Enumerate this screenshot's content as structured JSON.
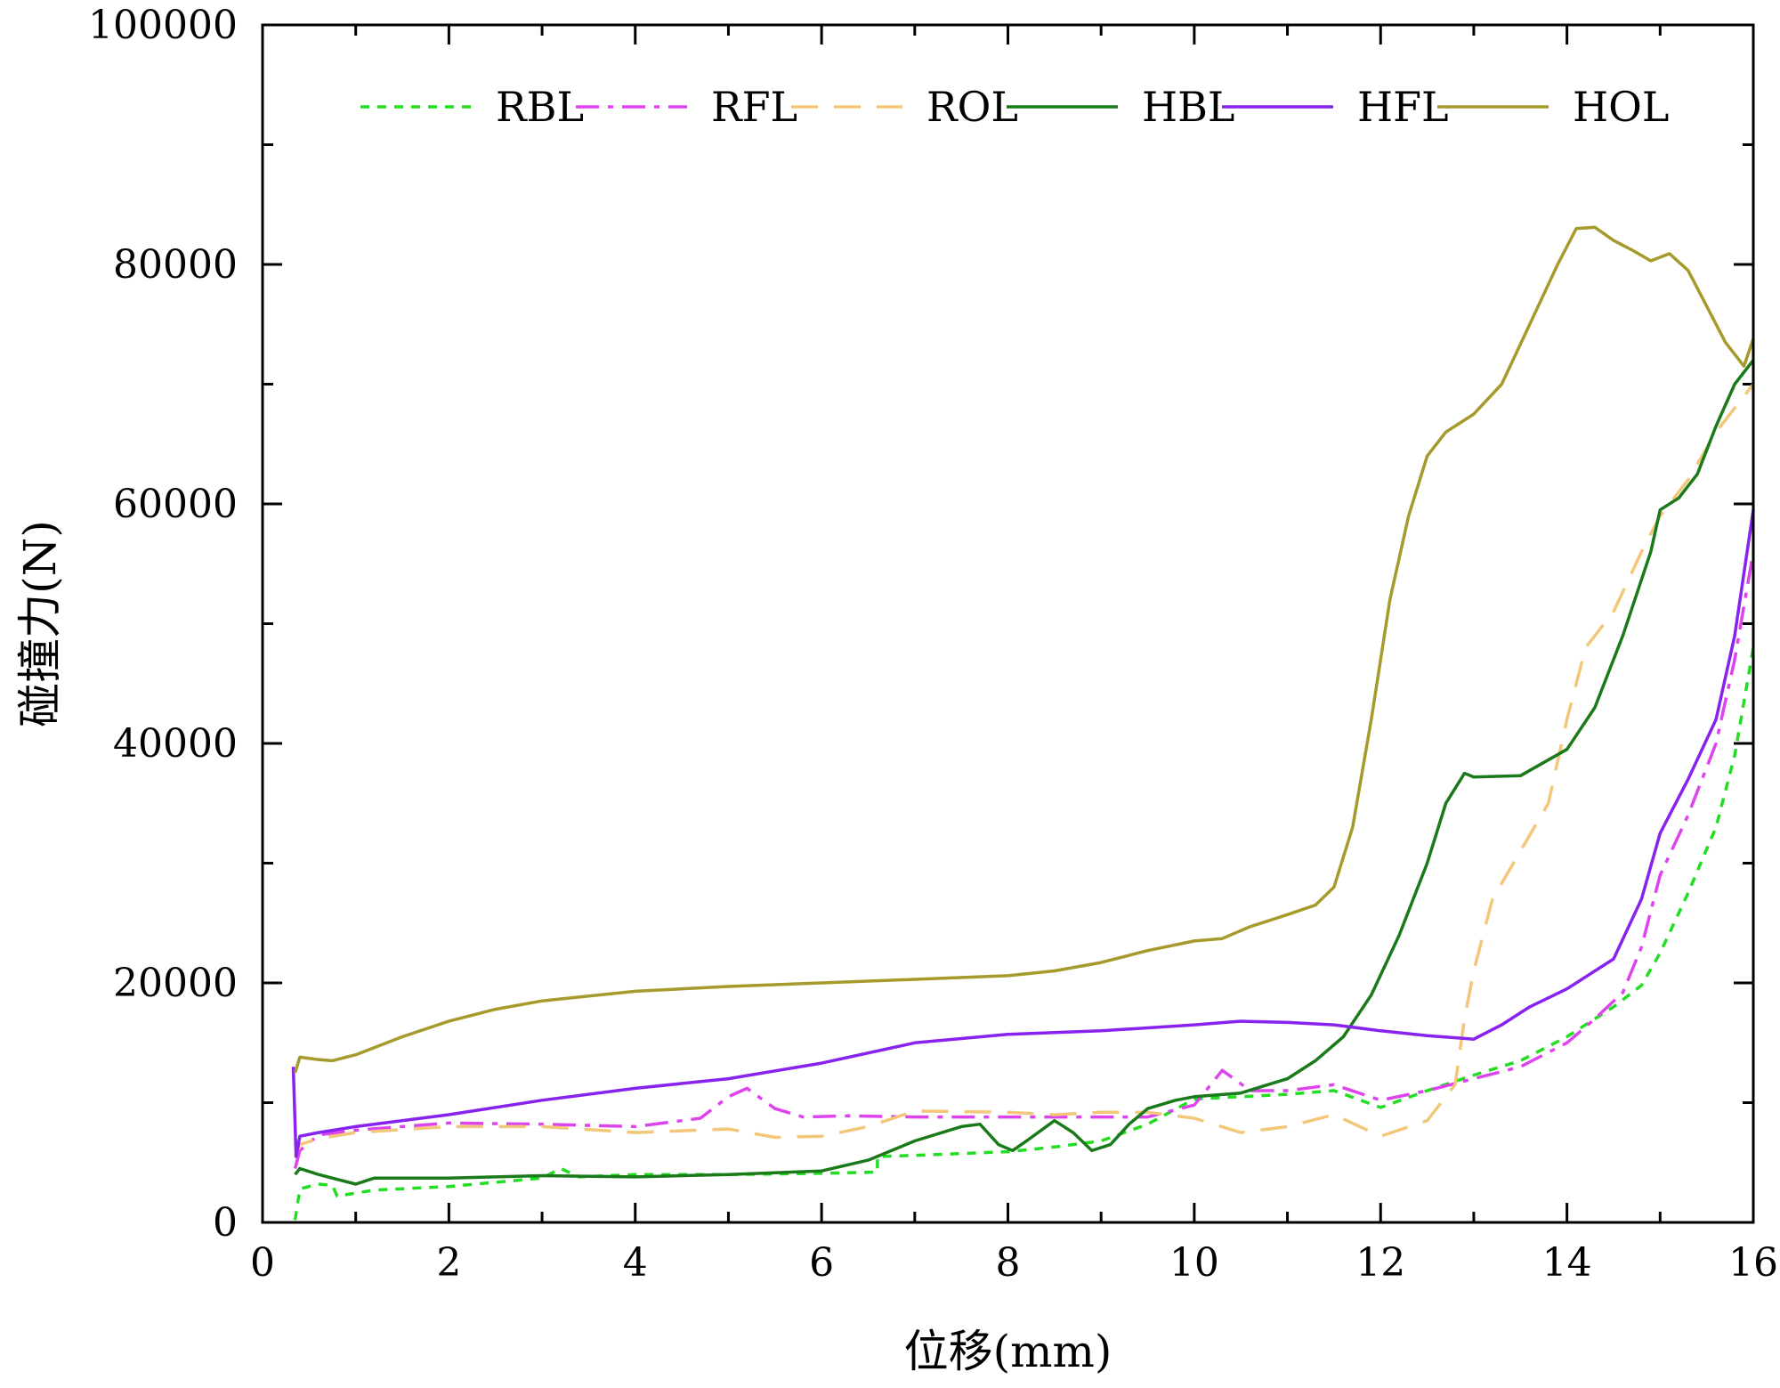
{
  "chart_data": {
    "type": "line",
    "title": "",
    "xlabel": "位移(mm)",
    "ylabel": "碰撞力(N)",
    "xlim": [
      0,
      16
    ],
    "ylim": [
      0,
      100000
    ],
    "x_ticks": [
      "0",
      "2",
      "4",
      "6",
      "8",
      "10",
      "12",
      "14",
      "16"
    ],
    "y_ticks": [
      "0",
      "20000",
      "40000",
      "60000",
      "80000",
      "100000"
    ],
    "legend_position": "top",
    "series": [
      {
        "name": "RBL",
        "color": "#22dd22",
        "dash": "dotted",
        "points": [
          [
            0.35,
            200
          ],
          [
            0.4,
            2800
          ],
          [
            0.6,
            3200
          ],
          [
            0.75,
            3100
          ],
          [
            0.8,
            2200
          ],
          [
            1.2,
            2700
          ],
          [
            2,
            3000
          ],
          [
            3,
            3700
          ],
          [
            3.2,
            4500
          ],
          [
            3.4,
            3800
          ],
          [
            4,
            4000
          ],
          [
            5,
            4000
          ],
          [
            6,
            4100
          ],
          [
            6.6,
            4200
          ],
          [
            6.6,
            5500
          ],
          [
            7,
            5600
          ],
          [
            8,
            5900
          ],
          [
            8.5,
            6300
          ],
          [
            9,
            6800
          ],
          [
            9.5,
            8200
          ],
          [
            10,
            10300
          ],
          [
            10.5,
            10500
          ],
          [
            11,
            10700
          ],
          [
            11.5,
            11000
          ],
          [
            12,
            9600
          ],
          [
            12.5,
            11000
          ],
          [
            13,
            12300
          ],
          [
            13.5,
            13500
          ],
          [
            14,
            15500
          ],
          [
            14.5,
            18000
          ],
          [
            14.8,
            19800
          ],
          [
            15,
            22500
          ],
          [
            15.3,
            27500
          ],
          [
            15.6,
            33000
          ],
          [
            15.8,
            39000
          ],
          [
            16,
            48000
          ]
        ]
      },
      {
        "name": "RFL",
        "color": "#dd44ee",
        "dash": "dashdot",
        "points": [
          [
            0.35,
            4500
          ],
          [
            0.4,
            6000
          ],
          [
            0.6,
            7300
          ],
          [
            1,
            7700
          ],
          [
            2,
            8300
          ],
          [
            3,
            8200
          ],
          [
            4,
            8000
          ],
          [
            4.7,
            8700
          ],
          [
            5,
            10500
          ],
          [
            5.2,
            11200
          ],
          [
            5.5,
            9500
          ],
          [
            5.8,
            8800
          ],
          [
            6.3,
            8900
          ],
          [
            7,
            8800
          ],
          [
            8,
            8800
          ],
          [
            9,
            8800
          ],
          [
            9.5,
            8800
          ],
          [
            10,
            9800
          ],
          [
            10.3,
            12700
          ],
          [
            10.6,
            11000
          ],
          [
            11,
            11000
          ],
          [
            11.5,
            11500
          ],
          [
            12,
            10200
          ],
          [
            12.5,
            11000
          ],
          [
            13,
            12000
          ],
          [
            13.5,
            13000
          ],
          [
            14,
            15000
          ],
          [
            14.3,
            17000
          ],
          [
            14.6,
            19200
          ],
          [
            14.8,
            23000
          ],
          [
            15,
            29000
          ],
          [
            15.3,
            34000
          ],
          [
            15.6,
            40000
          ],
          [
            15.8,
            47000
          ],
          [
            16,
            56000
          ]
        ]
      },
      {
        "name": "ROL",
        "color": "#f2c77a",
        "dash": "dashed",
        "points": [
          [
            0.35,
            5500
          ],
          [
            0.4,
            6500
          ],
          [
            0.6,
            7000
          ],
          [
            1,
            7500
          ],
          [
            2,
            8000
          ],
          [
            3,
            8000
          ],
          [
            4,
            7500
          ],
          [
            5,
            7800
          ],
          [
            5.5,
            7100
          ],
          [
            6,
            7200
          ],
          [
            6.5,
            8000
          ],
          [
            7,
            9300
          ],
          [
            8,
            9200
          ],
          [
            8.5,
            9000
          ],
          [
            9,
            9200
          ],
          [
            9.5,
            9200
          ],
          [
            10,
            8700
          ],
          [
            10.5,
            7500
          ],
          [
            11,
            8000
          ],
          [
            11.5,
            9000
          ],
          [
            12,
            7200
          ],
          [
            12.5,
            8500
          ],
          [
            12.8,
            11500
          ],
          [
            12.9,
            17000
          ],
          [
            13,
            21000
          ],
          [
            13.2,
            27000
          ],
          [
            13.5,
            31000
          ],
          [
            13.8,
            35000
          ],
          [
            14,
            42000
          ],
          [
            14.2,
            48000
          ],
          [
            14.5,
            51000
          ],
          [
            14.8,
            56000
          ],
          [
            15,
            59000
          ],
          [
            15.3,
            62000
          ],
          [
            15.6,
            66000
          ],
          [
            16,
            70000
          ]
        ]
      },
      {
        "name": "HBL",
        "color": "#1a7a1a",
        "dash": "solid",
        "points": [
          [
            0.35,
            4000
          ],
          [
            0.4,
            4500
          ],
          [
            0.6,
            4000
          ],
          [
            1,
            3200
          ],
          [
            1.2,
            3700
          ],
          [
            2,
            3700
          ],
          [
            3,
            3900
          ],
          [
            4,
            3800
          ],
          [
            5,
            4000
          ],
          [
            6,
            4300
          ],
          [
            6.5,
            5200
          ],
          [
            7,
            6800
          ],
          [
            7.5,
            8000
          ],
          [
            7.7,
            8200
          ],
          [
            7.9,
            6500
          ],
          [
            8.05,
            6000
          ],
          [
            8.2,
            6800
          ],
          [
            8.5,
            8500
          ],
          [
            8.7,
            7500
          ],
          [
            8.9,
            6000
          ],
          [
            9.1,
            6500
          ],
          [
            9.3,
            8200
          ],
          [
            9.5,
            9500
          ],
          [
            9.8,
            10200
          ],
          [
            10,
            10500
          ],
          [
            10.5,
            10800
          ],
          [
            11,
            12000
          ],
          [
            11.3,
            13500
          ],
          [
            11.6,
            15500
          ],
          [
            11.9,
            19000
          ],
          [
            12.2,
            24000
          ],
          [
            12.5,
            30000
          ],
          [
            12.7,
            35000
          ],
          [
            12.9,
            37500
          ],
          [
            13,
            37200
          ],
          [
            13.5,
            37300
          ],
          [
            14,
            39500
          ],
          [
            14.3,
            43000
          ],
          [
            14.6,
            49000
          ],
          [
            14.9,
            56000
          ],
          [
            15,
            59500
          ],
          [
            15.2,
            60500
          ],
          [
            15.4,
            62500
          ],
          [
            15.6,
            66500
          ],
          [
            15.8,
            70000
          ],
          [
            16,
            72000
          ]
        ]
      },
      {
        "name": "HFL",
        "color": "#8822ee",
        "dash": "solid",
        "points": [
          [
            0.33,
            13000
          ],
          [
            0.36,
            5500
          ],
          [
            0.4,
            7200
          ],
          [
            0.6,
            7500
          ],
          [
            1,
            8000
          ],
          [
            2,
            9000
          ],
          [
            3,
            10200
          ],
          [
            4,
            11200
          ],
          [
            5,
            12000
          ],
          [
            6,
            13300
          ],
          [
            7,
            15000
          ],
          [
            8,
            15700
          ],
          [
            9,
            16000
          ],
          [
            10,
            16500
          ],
          [
            10.5,
            16800
          ],
          [
            11,
            16700
          ],
          [
            11.5,
            16500
          ],
          [
            12,
            16000
          ],
          [
            12.5,
            15600
          ],
          [
            13,
            15300
          ],
          [
            13.3,
            16500
          ],
          [
            13.6,
            18000
          ],
          [
            14,
            19500
          ],
          [
            14.5,
            22000
          ],
          [
            14.8,
            27000
          ],
          [
            15,
            32500
          ],
          [
            15.3,
            37000
          ],
          [
            15.6,
            42000
          ],
          [
            15.8,
            49000
          ],
          [
            16,
            59500
          ]
        ]
      },
      {
        "name": "HOL",
        "color": "#a69a2c",
        "dash": "solid",
        "points": [
          [
            0.35,
            12500
          ],
          [
            0.4,
            13800
          ],
          [
            0.6,
            13600
          ],
          [
            0.75,
            13500
          ],
          [
            1,
            14000
          ],
          [
            1.5,
            15500
          ],
          [
            2,
            16800
          ],
          [
            2.5,
            17800
          ],
          [
            3,
            18500
          ],
          [
            4,
            19300
          ],
          [
            5,
            19700
          ],
          [
            6,
            20000
          ],
          [
            7,
            20300
          ],
          [
            8,
            20600
          ],
          [
            8.5,
            21000
          ],
          [
            9,
            21700
          ],
          [
            9.5,
            22700
          ],
          [
            10,
            23500
          ],
          [
            10.3,
            23700
          ],
          [
            10.6,
            24700
          ],
          [
            11,
            25700
          ],
          [
            11.3,
            26500
          ],
          [
            11.5,
            28000
          ],
          [
            11.7,
            33000
          ],
          [
            11.9,
            42000
          ],
          [
            12.1,
            52000
          ],
          [
            12.3,
            59000
          ],
          [
            12.5,
            64000
          ],
          [
            12.7,
            66000
          ],
          [
            13,
            67500
          ],
          [
            13.3,
            70000
          ],
          [
            13.6,
            75000
          ],
          [
            13.9,
            80000
          ],
          [
            14.1,
            83000
          ],
          [
            14.3,
            83100
          ],
          [
            14.5,
            82000
          ],
          [
            14.7,
            81200
          ],
          [
            14.9,
            80300
          ],
          [
            15.1,
            80900
          ],
          [
            15.3,
            79500
          ],
          [
            15.5,
            76500
          ],
          [
            15.7,
            73500
          ],
          [
            15.9,
            71500
          ],
          [
            16,
            73800
          ]
        ]
      }
    ]
  }
}
